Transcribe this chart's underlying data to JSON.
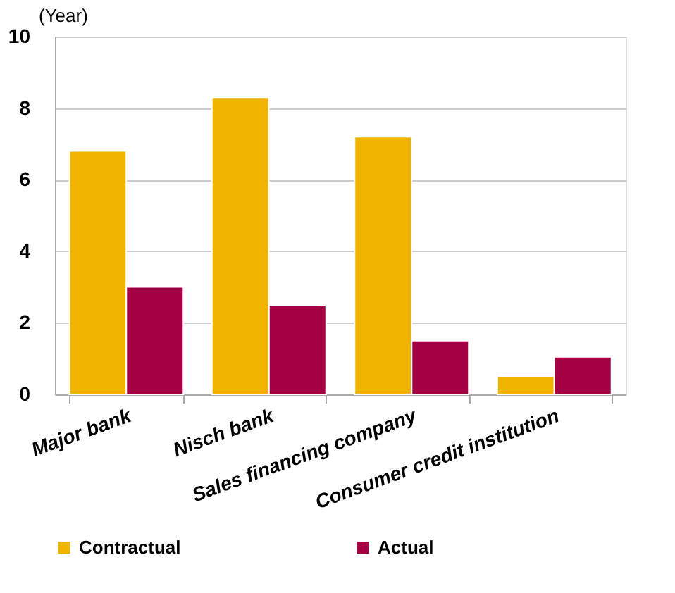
{
  "chart_data": {
    "type": "bar",
    "ylabel": "(Year)",
    "categories": [
      "Major bank",
      "Nisch bank",
      "Sales financing company",
      "Consumer credit institution"
    ],
    "series": [
      {
        "name": "Contractual",
        "color": "#f0b400",
        "values": [
          6.8,
          8.3,
          7.2,
          0.5
        ]
      },
      {
        "name": "Actual",
        "color": "#a50044",
        "values": [
          3.0,
          2.5,
          1.5,
          1.05
        ]
      }
    ],
    "ylim": [
      0,
      10
    ],
    "yticks": [
      0,
      2,
      4,
      6,
      8,
      10
    ],
    "grid": "y",
    "legend": "bottom"
  }
}
